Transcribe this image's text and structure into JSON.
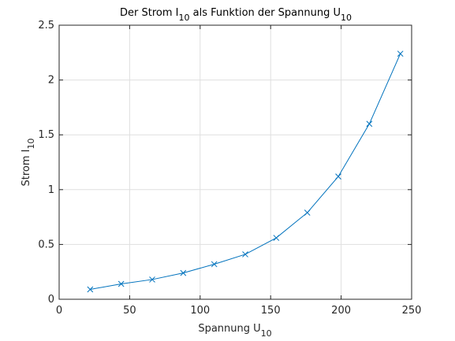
{
  "chart_data": {
    "type": "line",
    "title": {
      "prefix": "Der Strom I",
      "sub1": "10",
      "middle": " als Funktion der Spannung U",
      "sub2": "10"
    },
    "xlabel": {
      "prefix": "Spannung U",
      "sub": "10"
    },
    "ylabel": {
      "prefix": "Strom I",
      "sub": "10"
    },
    "xlim": [
      0,
      250
    ],
    "ylim": [
      0,
      2.5
    ],
    "xticks": [
      0,
      50,
      100,
      150,
      200,
      250
    ],
    "yticks": [
      0,
      0.5,
      1,
      1.5,
      2,
      2.5
    ],
    "xtick_labels": [
      "0",
      "50",
      "100",
      "150",
      "200",
      "250"
    ],
    "ytick_labels": [
      "0",
      "0.5",
      "1",
      "1.5",
      "2",
      "2.5"
    ],
    "grid": true,
    "marker": "x",
    "line_color": "#0072BD",
    "series": [
      {
        "x": [
          22,
          44,
          66,
          88,
          110,
          132,
          154,
          176,
          198,
          220,
          242
        ],
        "y": [
          0.09,
          0.14,
          0.18,
          0.24,
          0.32,
          0.41,
          0.56,
          0.79,
          1.12,
          1.6,
          2.24
        ]
      }
    ]
  }
}
